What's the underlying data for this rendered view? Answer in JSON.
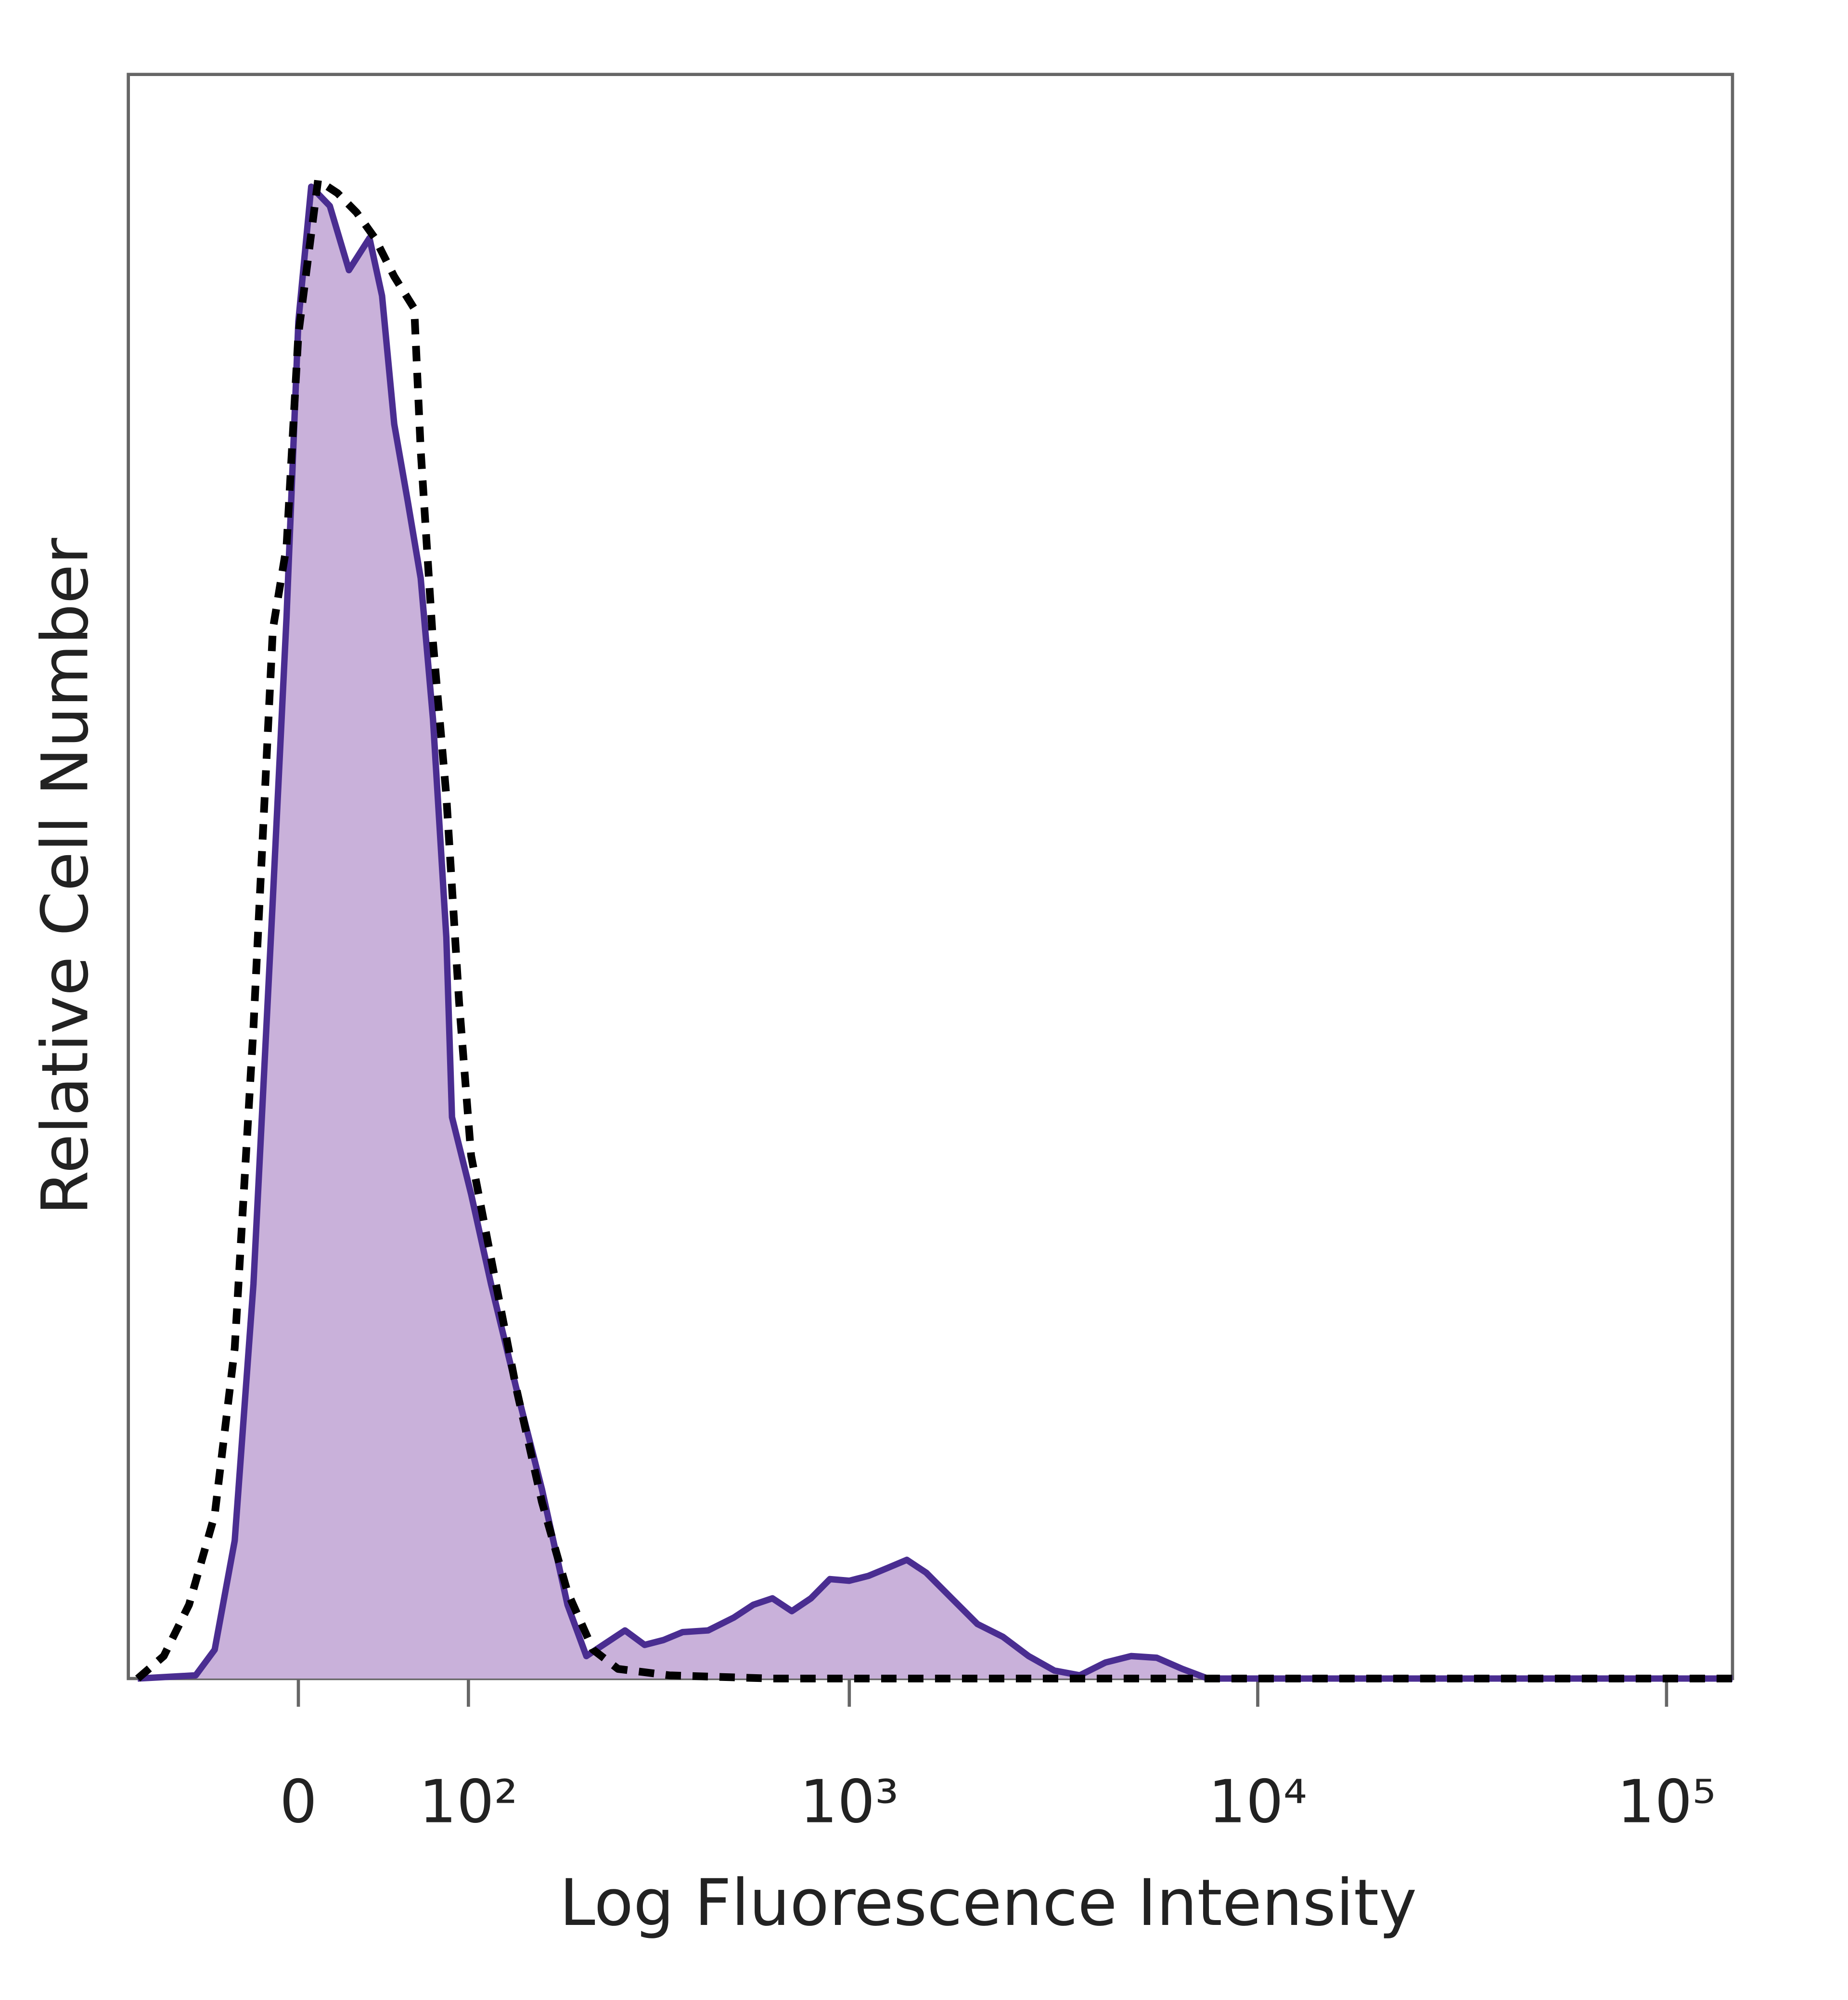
{
  "chart_data": {
    "type": "line",
    "xlabel": "Log Fluorescence Intensity",
    "ylabel": "Relative Cell Number",
    "xscale": "asinh",
    "xlim": [
      -100,
      145000
    ],
    "ylim": [
      0,
      100
    ],
    "xticks": [
      0,
      {
        "value": 100,
        "label": "10²"
      },
      {
        "value": 1000,
        "label": "10³"
      },
      {
        "value": 10000,
        "label": "10⁴"
      },
      {
        "value": 100000,
        "label": "10⁵"
      }
    ],
    "grid": false,
    "series": [
      {
        "color": "#4a2d91",
        "fill": "#c9b1da",
        "dashed": false,
        "x": [
          -93,
          -55,
          -44,
          -33,
          -23,
          -13,
          -6,
          0,
          6.5,
          16,
          26,
          37,
          44,
          51,
          59,
          67,
          75,
          84,
          88,
          102,
          118,
          140,
          166,
          195,
          219,
          246,
          276,
          310,
          346,
          387,
          448,
          519,
          580,
          647,
          722,
          805,
          896,
          1000,
          1114,
          1242,
          1384,
          1544,
          1783,
          2060,
          2380,
          2750,
          3180,
          3670,
          4240,
          4900,
          5660,
          6540,
          7550,
          145000
        ],
        "values": [
          0,
          0.2,
          1.8,
          8.6,
          24.6,
          48.6,
          66.2,
          84.6,
          93,
          91.8,
          87.8,
          89.8,
          86.2,
          78.2,
          73.4,
          68.6,
          59.8,
          46.2,
          35,
          30.2,
          24.6,
          18.2,
          11.8,
          4.6,
          1.4,
          2.2,
          3,
          2.1,
          2.4,
          2.9,
          3,
          3.8,
          4.6,
          5,
          4.2,
          5,
          6.2,
          6.1,
          6.4,
          6.9,
          7.4,
          6.6,
          5,
          3.4,
          2.6,
          1.4,
          0.5,
          0.2,
          1,
          1.4,
          1.3,
          0.6,
          0,
          0
        ]
      },
      {
        "color": "#000000",
        "dashed": true,
        "x": [
          -93,
          -75,
          -59,
          -44,
          -33,
          -23,
          -13,
          -6,
          0,
          10,
          20,
          30,
          40,
          51,
          63,
          67,
          75,
          84,
          93,
          102,
          118,
          140,
          166,
          195,
          228,
          265,
          358,
          647,
          145000
        ],
        "values": [
          0,
          1.4,
          4.6,
          10.2,
          20.6,
          40.6,
          65.4,
          70.6,
          83.8,
          93.4,
          92.6,
          91.4,
          89.8,
          87.4,
          85.4,
          76.6,
          64.6,
          55,
          42.2,
          32.6,
          26.2,
          18.2,
          11,
          5.4,
          1.8,
          0.6,
          0.2,
          0,
          0
        ]
      }
    ]
  }
}
